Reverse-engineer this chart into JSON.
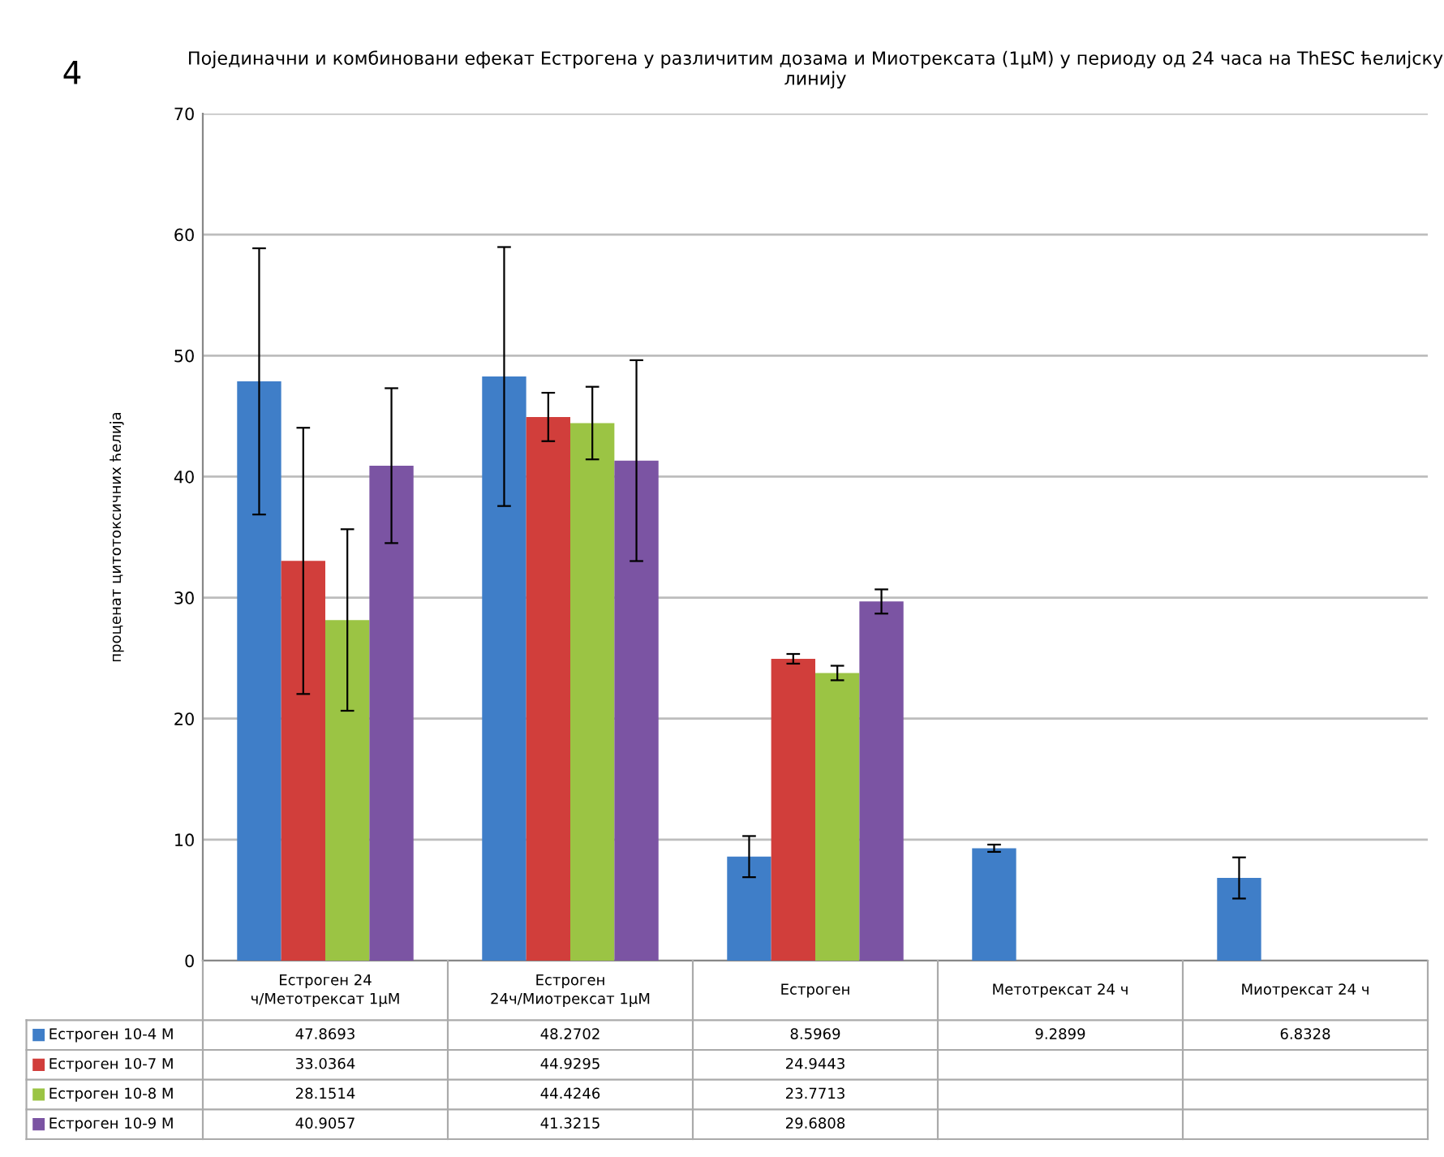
{
  "chart_data": {
    "type": "bar",
    "title": "Појединачни и комбиновани ефекат Естрогена у различитим дозама и Миотрексата (1μM) у периоду од 24 часа на ThESC ћелијску линију",
    "ylabel": "проценат цитотоксичних ћелија",
    "annotations": [
      "4"
    ],
    "categories": [
      "Естроген 24 ч/Метотрексат 1μM",
      "Естроген 24ч/Миотрексат 1μM",
      "Естроген",
      "Метотрексат 24 ч",
      "Миотрексат 24 ч"
    ],
    "series": [
      {
        "name": "Естроген 10-4 M",
        "color": "#3f7ec8",
        "values": [
          47.8693,
          48.2702,
          8.5969,
          9.2899,
          6.8328
        ],
        "errors": [
          11,
          10.7,
          1.7,
          0.3,
          1.7
        ]
      },
      {
        "name": "Естроген 10-7 M",
        "color": "#d13e3b",
        "values": [
          33.0364,
          44.9295,
          24.9443,
          null,
          null
        ],
        "errors": [
          11,
          2,
          0.4,
          null,
          null
        ]
      },
      {
        "name": "Естроген 10-8 M",
        "color": "#9bc444",
        "values": [
          28.1514,
          44.4246,
          23.7713,
          null,
          null
        ],
        "errors": [
          7.5,
          3,
          0.6,
          null,
          null
        ]
      },
      {
        "name": "Естроген 10-9 M",
        "color": "#7b54a3",
        "values": [
          40.9057,
          41.3215,
          29.6808,
          null,
          null
        ],
        "errors": [
          6.4,
          8.3,
          1,
          null,
          null
        ]
      }
    ],
    "ylim": [
      0,
      70
    ],
    "yticks": [
      0,
      10,
      20,
      30,
      40,
      50,
      60,
      70
    ],
    "grid": "y",
    "legend": "bottom",
    "data_labels": true
  }
}
